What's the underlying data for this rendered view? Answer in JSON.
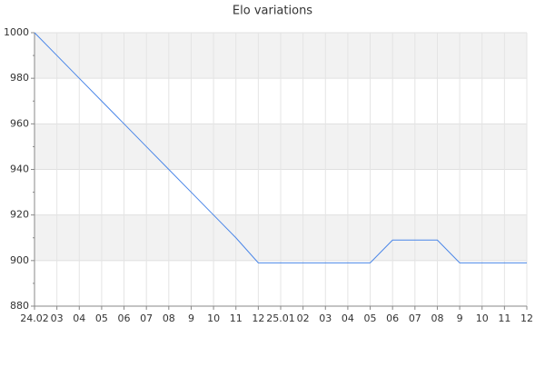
{
  "chart_data": {
    "type": "line",
    "title": "Elo variations",
    "categories": [
      "24.02",
      "03",
      "04",
      "05",
      "06",
      "07",
      "08",
      "9",
      "10",
      "11",
      "12",
      "25.01",
      "02",
      "03",
      "04",
      "05",
      "06",
      "07",
      "08",
      "9",
      "10",
      "11",
      "12"
    ],
    "series": [
      {
        "name": "Elo",
        "color": "#4a86e8",
        "values": [
          1000,
          990,
          980,
          970,
          960,
          950,
          940,
          930,
          920,
          910,
          899,
          899,
          899,
          899,
          899,
          899,
          909,
          909,
          909,
          899,
          899,
          899,
          899
        ]
      }
    ],
    "ylim": [
      880,
      1000
    ],
    "yticks": [
      880,
      900,
      920,
      940,
      960,
      980,
      1000
    ],
    "grid": true
  }
}
